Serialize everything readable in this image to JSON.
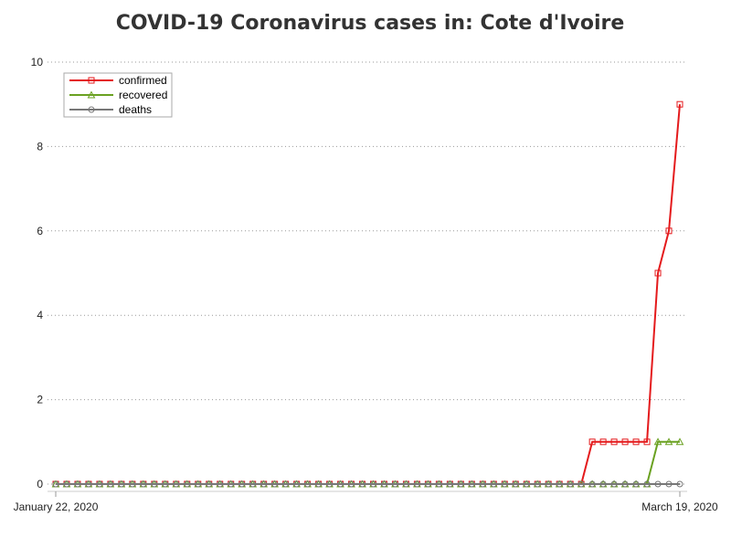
{
  "chart_data": {
    "type": "line",
    "title": "COVID-19 Coronavirus cases in: Cote d'Ivoire",
    "xlabel": "",
    "ylabel": "",
    "x_start": "January 22, 2020",
    "x_end": "March 19, 2020",
    "x_tick_labels": [
      "January 22, 2020",
      "March 19, 2020"
    ],
    "ylim": [
      0,
      10
    ],
    "y_ticks": [
      0,
      2,
      4,
      6,
      8,
      10
    ],
    "grid": "horizontal dotted",
    "legend_position": "top-left",
    "series": [
      {
        "name": "confirmed",
        "color": "#e41a1c",
        "marker": "square",
        "values": [
          0,
          0,
          0,
          0,
          0,
          0,
          0,
          0,
          0,
          0,
          0,
          0,
          0,
          0,
          0,
          0,
          0,
          0,
          0,
          0,
          0,
          0,
          0,
          0,
          0,
          0,
          0,
          0,
          0,
          0,
          0,
          0,
          0,
          0,
          0,
          0,
          0,
          0,
          0,
          0,
          0,
          0,
          0,
          0,
          0,
          0,
          0,
          0,
          0,
          1,
          1,
          1,
          1,
          1,
          1,
          5,
          6,
          9
        ]
      },
      {
        "name": "recovered",
        "color": "#6aa121",
        "marker": "triangle",
        "values": [
          0,
          0,
          0,
          0,
          0,
          0,
          0,
          0,
          0,
          0,
          0,
          0,
          0,
          0,
          0,
          0,
          0,
          0,
          0,
          0,
          0,
          0,
          0,
          0,
          0,
          0,
          0,
          0,
          0,
          0,
          0,
          0,
          0,
          0,
          0,
          0,
          0,
          0,
          0,
          0,
          0,
          0,
          0,
          0,
          0,
          0,
          0,
          0,
          0,
          0,
          0,
          0,
          0,
          0,
          0,
          1,
          1,
          1
        ]
      },
      {
        "name": "deaths",
        "color": "#777777",
        "marker": "circle",
        "values": [
          0,
          0,
          0,
          0,
          0,
          0,
          0,
          0,
          0,
          0,
          0,
          0,
          0,
          0,
          0,
          0,
          0,
          0,
          0,
          0,
          0,
          0,
          0,
          0,
          0,
          0,
          0,
          0,
          0,
          0,
          0,
          0,
          0,
          0,
          0,
          0,
          0,
          0,
          0,
          0,
          0,
          0,
          0,
          0,
          0,
          0,
          0,
          0,
          0,
          0,
          0,
          0,
          0,
          0,
          0,
          0,
          0,
          0
        ]
      }
    ]
  }
}
